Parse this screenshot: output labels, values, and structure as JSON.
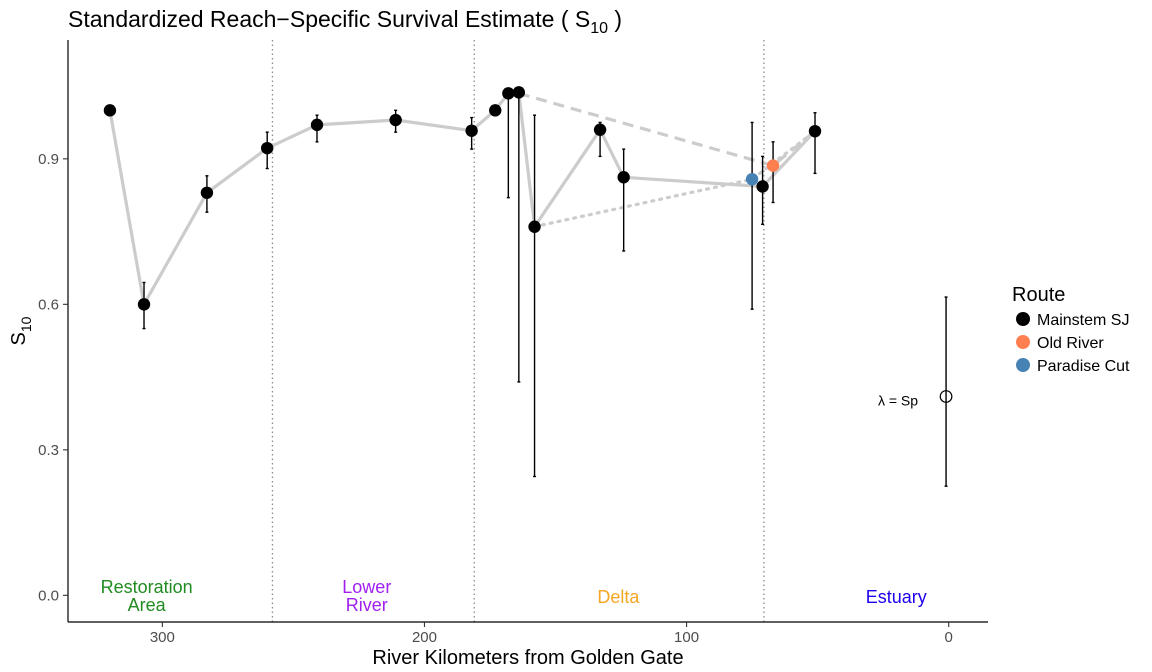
{
  "chart_data": {
    "type": "scatter",
    "title_main": "Standardized Reach−Specific Survival Estimate ( S",
    "title_sub": "10",
    "title_end": " )",
    "xlabel": "River Kilometers from Golden Gate",
    "ylabel_main": "S",
    "ylabel_sub": "10",
    "xlim": [
      336,
      -15
    ],
    "ylim": [
      -0.055,
      1.145
    ],
    "x_reversed": true,
    "x_ticks": [
      300,
      200,
      100,
      0
    ],
    "x_tick_labels": [
      "300",
      "200",
      "100",
      "0"
    ],
    "y_ticks": [
      0.0,
      0.3,
      0.6,
      0.9
    ],
    "y_tick_labels": [
      "0.0",
      "0.3",
      "0.6",
      "0.9"
    ],
    "grid": false,
    "legend_position": "right",
    "legend_title": "Route",
    "legend_entries": [
      {
        "name": "Mainstem SJ",
        "color": "#000000"
      },
      {
        "name": "Old River",
        "color": "#FF7F50"
      },
      {
        "name": "Paradise Cut",
        "color": "#4682B4"
      }
    ],
    "region_boundaries": [
      258,
      181,
      70.5
    ],
    "regions": [
      {
        "lines": [
          "Restoration",
          "Area"
        ],
        "x": 306,
        "color": "#228B22"
      },
      {
        "lines": [
          "Lower",
          "River"
        ],
        "x": 222,
        "color": "#A020F0"
      },
      {
        "lines": [
          "Delta"
        ],
        "x": 126,
        "color": "#F5A623"
      },
      {
        "lines": [
          "Estuary"
        ],
        "x": 20,
        "color": "#1E00F0"
      }
    ],
    "series": [
      {
        "name": "Mainstem SJ",
        "color": "#000000",
        "points": [
          {
            "x": 320,
            "y": 1.0
          },
          {
            "x": 307,
            "y": 0.6,
            "lo": 0.55,
            "hi": 0.645
          },
          {
            "x": 283,
            "y": 0.83,
            "lo": 0.79,
            "hi": 0.865
          },
          {
            "x": 260,
            "y": 0.922,
            "lo": 0.88,
            "hi": 0.955
          },
          {
            "x": 241,
            "y": 0.97,
            "lo": 0.935,
            "hi": 0.99
          },
          {
            "x": 211,
            "y": 0.98,
            "lo": 0.955,
            "hi": 1.0
          },
          {
            "x": 182,
            "y": 0.958,
            "lo": 0.92,
            "hi": 0.985
          },
          {
            "x": 173,
            "y": 1.0
          },
          {
            "x": 168,
            "y": 1.035,
            "lo": 0.82,
            "hi": 1.04
          },
          {
            "x": 164,
            "y": 1.037,
            "lo": 0.44,
            "hi": 1.04
          },
          {
            "x": 158,
            "y": 0.76,
            "lo": 0.245,
            "hi": 0.99
          },
          {
            "x": 133,
            "y": 0.96,
            "lo": 0.905,
            "hi": 0.975
          },
          {
            "x": 124,
            "y": 0.862,
            "lo": 0.71,
            "hi": 0.92
          },
          {
            "x": 71,
            "y": 0.843,
            "lo": 0.765,
            "hi": 0.905
          },
          {
            "x": 51,
            "y": 0.957,
            "lo": 0.87,
            "hi": 0.995
          }
        ]
      },
      {
        "name": "Old River",
        "color": "#FF7F50",
        "points": [
          {
            "x": 67,
            "y": 0.886,
            "lo": 0.81,
            "hi": 0.935
          }
        ]
      },
      {
        "name": "Paradise Cut",
        "color": "#4682B4",
        "points": [
          {
            "x": 75,
            "y": 0.858,
            "lo": 0.59,
            "hi": 0.975
          }
        ]
      }
    ],
    "connectors_solid": [
      [
        [
          320,
          1.0
        ],
        [
          307,
          0.6
        ],
        [
          283,
          0.83
        ],
        [
          260,
          0.922
        ],
        [
          241,
          0.97
        ],
        [
          211,
          0.98
        ],
        [
          182,
          0.958
        ],
        [
          173,
          1.0
        ],
        [
          168,
          1.035
        ]
      ],
      [
        [
          164,
          1.037
        ],
        [
          158,
          0.76
        ],
        [
          133,
          0.96
        ],
        [
          124,
          0.862
        ],
        [
          71,
          0.843
        ],
        [
          51,
          0.957
        ]
      ]
    ],
    "connectors_dashed": [
      [
        [
          164,
          1.035
        ],
        [
          67,
          0.886
        ],
        [
          51,
          0.957
        ]
      ]
    ],
    "connectors_dotted": [
      [
        [
          158,
          0.76
        ],
        [
          75,
          0.858
        ],
        [
          51,
          0.957
        ]
      ]
    ],
    "estuary_estimate": {
      "x": 1,
      "y": 0.41,
      "lo": 0.225,
      "hi": 0.615,
      "label": "λ = Sp"
    }
  }
}
